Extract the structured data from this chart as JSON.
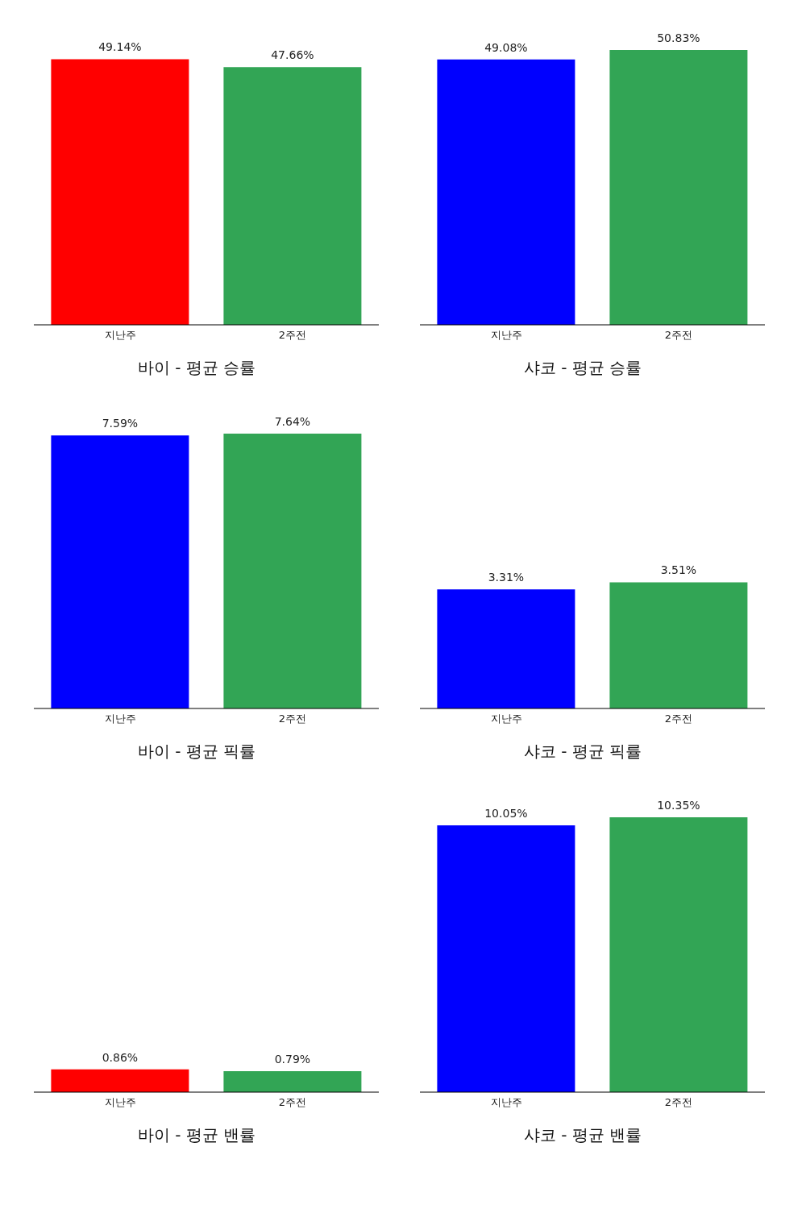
{
  "chart_data": [
    {
      "type": "bar",
      "title": "바이 - 평균 승률",
      "categories": [
        "지난주",
        "2주전"
      ],
      "values": [
        49.14,
        47.66
      ],
      "colors": [
        "#ff0000",
        "#32a555"
      ],
      "value_labels": [
        "49.14%",
        "47.66%"
      ]
    },
    {
      "type": "bar",
      "title": "샤코 - 평균 승률",
      "categories": [
        "지난주",
        "2주전"
      ],
      "values": [
        49.08,
        50.83
      ],
      "colors": [
        "#0000ff",
        "#32a555"
      ],
      "value_labels": [
        "49.08%",
        "50.83%"
      ]
    },
    {
      "type": "bar",
      "title": "바이 - 평균 픽률",
      "categories": [
        "지난주",
        "2주전"
      ],
      "values": [
        7.59,
        7.64
      ],
      "colors": [
        "#0000ff",
        "#32a555"
      ],
      "value_labels": [
        "7.59%",
        "7.64%"
      ]
    },
    {
      "type": "bar",
      "title": "샤코 - 평균 픽률",
      "categories": [
        "지난주",
        "2주전"
      ],
      "values": [
        3.31,
        3.51
      ],
      "colors": [
        "#0000ff",
        "#32a555"
      ],
      "value_labels": [
        "3.31%",
        "3.51%"
      ]
    },
    {
      "type": "bar",
      "title": "바이 - 평균 밴률",
      "categories": [
        "지난주",
        "2주전"
      ],
      "values": [
        0.86,
        0.79
      ],
      "colors": [
        "#ff0000",
        "#32a555"
      ],
      "value_labels": [
        "0.86%",
        "0.79%"
      ]
    },
    {
      "type": "bar",
      "title": "샤코 - 평균 밴률",
      "categories": [
        "지난주",
        "2주전"
      ],
      "values": [
        10.05,
        10.35
      ],
      "colors": [
        "#0000ff",
        "#32a555"
      ],
      "value_labels": [
        "10.05%",
        "10.35%"
      ]
    }
  ]
}
